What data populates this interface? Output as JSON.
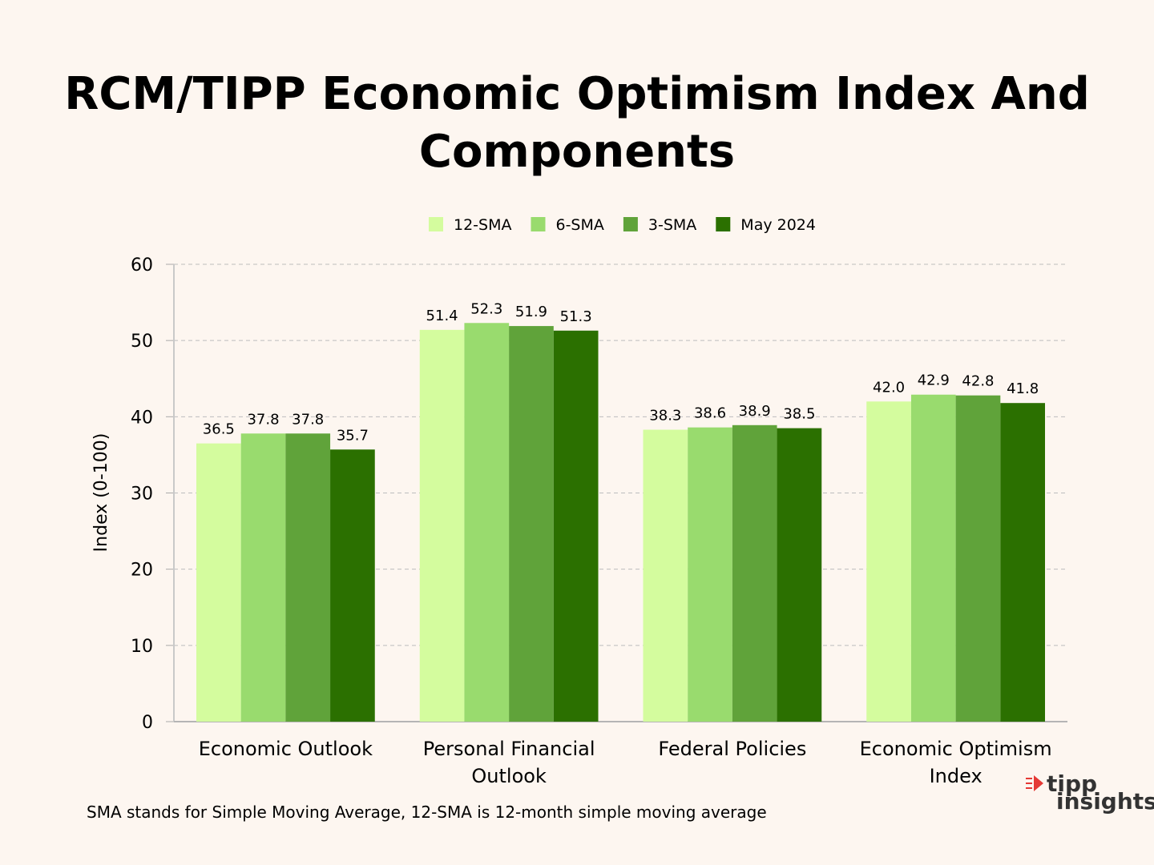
{
  "title_line1": "RCM/TIPP Economic Optimism Index And",
  "title_line2": "Components",
  "footnote": "SMA stands for Simple Moving Average, 12-SMA is 12-month simple moving average",
  "logo": {
    "line1": "tipp",
    "line2": "insights",
    "accent": "#e53935"
  },
  "chart_data": {
    "type": "bar",
    "categories": [
      [
        "Economic Outlook"
      ],
      [
        "Personal Financial",
        "Outlook"
      ],
      [
        "Federal Policies"
      ],
      [
        "Economic Optimism",
        "Index"
      ]
    ],
    "series": [
      {
        "name": "12-SMA",
        "color": "#d4fc9e",
        "values": [
          36.5,
          51.4,
          38.3,
          42.0
        ]
      },
      {
        "name": "6-SMA",
        "color": "#99db6e",
        "values": [
          37.8,
          52.3,
          38.6,
          42.9
        ]
      },
      {
        "name": "3-SMA",
        "color": "#60a33a",
        "values": [
          37.8,
          51.9,
          38.9,
          42.8
        ]
      },
      {
        "name": "May 2024",
        "color": "#2b7000",
        "values": [
          35.7,
          51.3,
          38.5,
          41.8
        ]
      }
    ],
    "ylabel": "Index (0-100)",
    "ylim": [
      0,
      60
    ],
    "yticks": [
      0,
      10,
      20,
      30,
      40,
      50,
      60
    ],
    "grid": true,
    "legend": "top-center"
  }
}
